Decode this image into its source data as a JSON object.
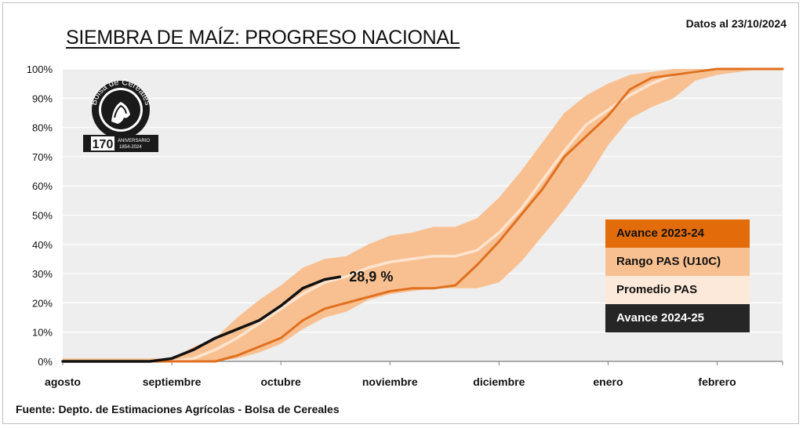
{
  "header": {
    "title": "SIEMBRA DE MAÍZ: PROGRESO NACIONAL",
    "as_of": "Datos al 23/10/2024"
  },
  "footer": {
    "source": "Fuente: Depto. de Estimaciones Agrícolas - Bolsa de Cereales"
  },
  "logo": {
    "ring_text": "Bolsa de Cereales",
    "number": "170",
    "caption_top": "ANIVERSARIO",
    "caption_bottom": "1854-2024"
  },
  "colors": {
    "plot_bg": "#eeeeee",
    "grid": "#ffffff",
    "range_band": "#f8c090",
    "average": "#fde4d0",
    "avance_2023_24": "#e07020",
    "avance_2024_25": "#111111"
  },
  "legend": [
    {
      "label": "Avance 2023-24",
      "bg": "#e36c0a",
      "color": "#111111"
    },
    {
      "label": "Rango PAS (U10C)",
      "bg": "#f8c090",
      "color": "#111111"
    },
    {
      "label": "Promedio PAS",
      "bg": "#fde9d9",
      "color": "#111111"
    },
    {
      "label": "Avance 2024-25",
      "bg": "#262626",
      "color": "#ffffff"
    }
  ],
  "chart_data": {
    "type": "line",
    "title": "SIEMBRA DE MAÍZ: PROGRESO NACIONAL",
    "ylim": [
      0,
      100
    ],
    "y_ticks": [
      "0%",
      "10%",
      "20%",
      "30%",
      "40%",
      "50%",
      "60%",
      "70%",
      "80%",
      "90%",
      "100%"
    ],
    "x_ticks": [
      "agosto",
      "septiembre",
      "octubre",
      "noviembre",
      "diciembre",
      "enero",
      "febrero"
    ],
    "grid": true,
    "legend_position": "right",
    "x_unit": "weeks since start of agosto",
    "series": [
      {
        "name": "Rango PAS (U10C)",
        "kind": "band",
        "x": [
          0,
          2,
          4,
          5,
          6,
          7,
          8,
          9,
          10,
          11,
          12,
          13,
          14,
          15,
          16,
          17,
          18,
          19,
          20,
          21,
          22,
          23,
          24,
          25,
          26,
          27,
          28,
          29,
          30,
          31,
          32,
          33
        ],
        "lower": [
          0,
          0,
          0,
          0,
          0,
          0,
          1,
          3,
          6,
          11,
          15,
          17,
          21,
          23,
          24,
          25,
          25,
          25,
          27,
          34,
          43,
          52,
          62,
          74,
          83,
          87,
          90,
          96,
          98,
          99,
          100,
          100
        ],
        "upper": [
          1,
          1,
          1,
          1,
          5,
          8,
          15,
          21,
          26,
          32,
          35,
          36,
          40,
          43,
          44,
          46,
          46,
          49,
          56,
          65,
          75,
          85,
          91,
          95,
          98,
          99,
          100,
          100,
          100,
          100,
          100,
          100
        ]
      },
      {
        "name": "Promedio PAS",
        "x": [
          0,
          2,
          4,
          5,
          6,
          7,
          8,
          9,
          10,
          11,
          12,
          13,
          14,
          15,
          16,
          17,
          18,
          19,
          20,
          21,
          22,
          23,
          24,
          25,
          26,
          27,
          28,
          29,
          30,
          31,
          32,
          33
        ],
        "values": [
          0,
          0,
          0,
          0,
          1,
          4,
          8,
          13,
          18,
          23,
          27,
          29,
          32,
          34,
          35,
          36,
          36,
          38,
          44,
          52,
          62,
          72,
          81,
          86,
          91,
          95,
          98,
          99,
          100,
          100,
          100,
          100
        ]
      },
      {
        "name": "Avance 2023-24",
        "x": [
          0,
          2,
          4,
          5,
          6,
          7,
          8,
          9,
          10,
          11,
          12,
          13,
          14,
          15,
          16,
          17,
          18,
          19,
          20,
          21,
          22,
          23,
          24,
          25,
          26,
          27,
          28,
          29,
          30,
          31,
          32,
          33
        ],
        "values": [
          0,
          0,
          0,
          0,
          0,
          0,
          2,
          5,
          8,
          14,
          18,
          20,
          22,
          24,
          25,
          25,
          26,
          33,
          41,
          50,
          59,
          70,
          77,
          84,
          93,
          97,
          98,
          99,
          100,
          100,
          100,
          100
        ]
      },
      {
        "name": "Avance 2024-25",
        "x": [
          0,
          2,
          4,
          5,
          6,
          7,
          8,
          9,
          10,
          11,
          12,
          12.7
        ],
        "values": [
          0,
          0,
          0,
          1,
          4,
          8,
          11,
          14,
          19,
          25,
          28,
          28.9
        ]
      }
    ],
    "annotations": [
      {
        "text": "28,9 %",
        "x": 12.7,
        "y": 28.9
      }
    ]
  }
}
